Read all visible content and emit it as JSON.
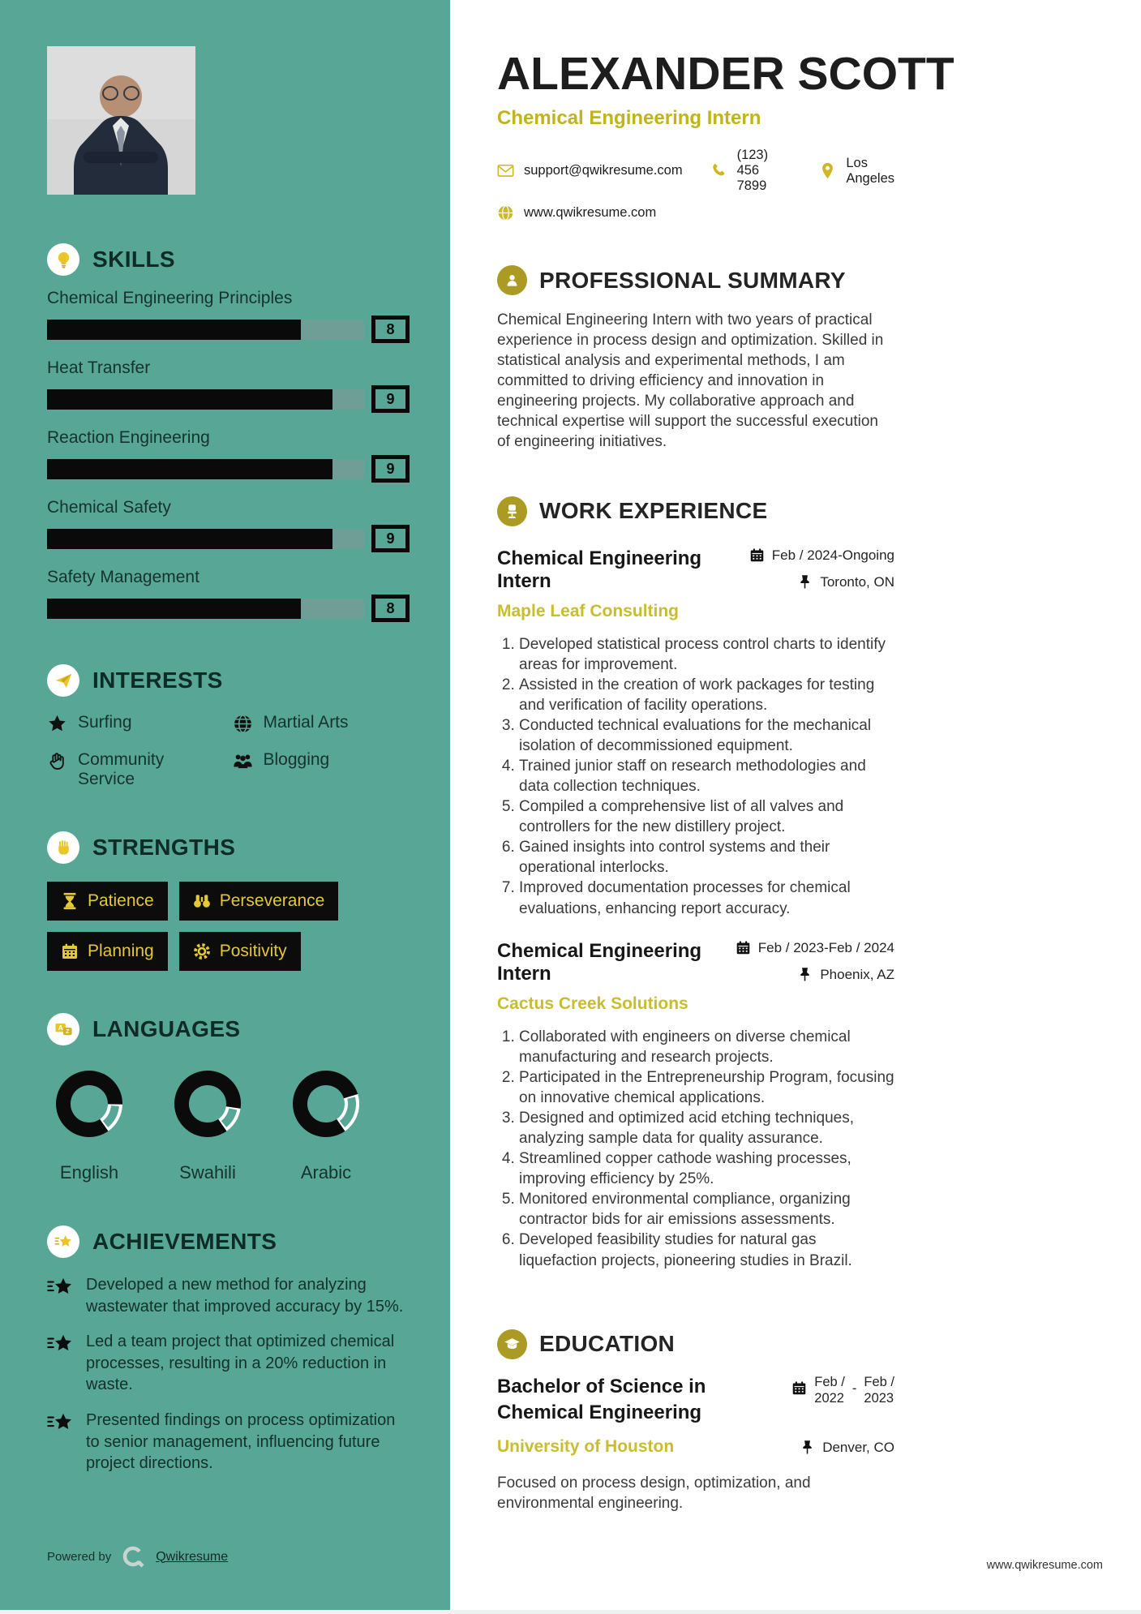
{
  "page": {
    "powered_by": "Powered by",
    "brand_link": "Qwikresume",
    "website_footer": "www.qwikresume.com"
  },
  "header": {
    "name": "ALEXANDER SCOTT",
    "role": "Chemical Engineering Intern",
    "email": "support@qwikresume.com",
    "phone": "(123) 456 7899",
    "location": "Los Angeles",
    "website": "www.qwikresume.com"
  },
  "summary": {
    "title": "PROFESSIONAL SUMMARY",
    "text": "Chemical Engineering Intern with two years of practical experience in process design and optimization. Skilled in statistical analysis and experimental methods, I am committed to driving efficiency and innovation in engineering projects. My collaborative approach and technical expertise will support the successful execution of engineering initiatives."
  },
  "work": {
    "title": "WORK EXPERIENCE",
    "jobs": [
      {
        "title": "Chemical Engineering Intern",
        "company": "Maple Leaf Consulting",
        "date": "Feb / 2024-Ongoing",
        "location": "Toronto, ON",
        "bullets": [
          "Developed statistical process control charts to identify areas for improvement.",
          "Assisted in the creation of work packages for testing and verification of facility operations.",
          "Conducted technical evaluations for the mechanical isolation of decommissioned equipment.",
          "Trained junior staff on research methodologies and data collection techniques.",
          "Compiled a comprehensive list of all valves and controllers for the new distillery project.",
          "Gained insights into control systems and their operational interlocks.",
          "Improved documentation processes for chemical evaluations, enhancing report accuracy."
        ]
      },
      {
        "title": "Chemical Engineering Intern",
        "company": "Cactus Creek Solutions",
        "date": "Feb / 2023-Feb / 2024",
        "location": "Phoenix, AZ",
        "bullets": [
          "Collaborated with engineers on diverse chemical manufacturing and research projects.",
          "Participated in the Entrepreneurship Program, focusing on innovative chemical applications.",
          "Designed and optimized acid etching techniques, analyzing sample data for quality assurance.",
          "Streamlined copper cathode washing processes, improving efficiency by 25%.",
          "Monitored environmental compliance, organizing contractor bids for air emissions assessments.",
          "Developed feasibility studies for natural gas liquefaction projects, pioneering studies in Brazil."
        ]
      }
    ]
  },
  "education": {
    "title": "EDUCATION",
    "degree": "Bachelor of Science in Chemical Engineering",
    "university": "University of Houston",
    "location": "Denver, CO",
    "date": {
      "start_top": "Feb /",
      "start_bottom": "2022",
      "separator": "-",
      "end_top": "Feb /",
      "end_bottom": "2023"
    },
    "description": "Focused on process design, optimization, and environmental engineering."
  },
  "sidebar": {
    "skills": {
      "title": "SKILLS",
      "max": 10,
      "items": [
        {
          "label": "Chemical Engineering Principles",
          "value": 8
        },
        {
          "label": "Heat Transfer",
          "value": 9
        },
        {
          "label": "Reaction Engineering",
          "value": 9
        },
        {
          "label": "Chemical Safety",
          "value": 9
        },
        {
          "label": "Safety Management",
          "value": 8
        }
      ]
    },
    "interests": {
      "title": "INTERESTS",
      "items": [
        {
          "label": "Surfing",
          "icon": "star-icon"
        },
        {
          "label": "Martial Arts",
          "icon": "globe-icon"
        },
        {
          "label": "Community Service",
          "icon": "hand-icon"
        },
        {
          "label": "Blogging",
          "icon": "users-icon"
        }
      ]
    },
    "strengths": {
      "title": "STRENGTHS",
      "items": [
        {
          "label": "Patience",
          "icon": "hourglass-icon"
        },
        {
          "label": "Perseverance",
          "icon": "binoculars-icon"
        },
        {
          "label": "Planning",
          "icon": "calendar-icon"
        },
        {
          "label": "Positivity",
          "icon": "gear-icon"
        }
      ]
    },
    "languages": {
      "title": "LANGUAGES",
      "items": [
        {
          "label": "English",
          "percent": 85
        },
        {
          "label": "Swahili",
          "percent": 87
        },
        {
          "label": "Arabic",
          "percent": 80
        }
      ]
    },
    "achievements": {
      "title": "ACHIEVEMENTS",
      "items": [
        "Developed a new method for analyzing wastewater that improved accuracy by 15%.",
        "Led a team project that optimized chemical processes, resulting in a 20% reduction in waste.",
        "Presented findings on process optimization to senior management, influencing future project directions."
      ]
    }
  },
  "colors": {
    "sidebar_teal": "#58a796",
    "bar_track": "#6f9e96",
    "bar_fill": "#0a0a0a",
    "accent_yellow": "#e3c22a",
    "olive_circle": "#ab9b24",
    "company_yellow": "#c8bd2e",
    "role_yellow": "#bfb41c",
    "dark_text": "#14332e"
  }
}
